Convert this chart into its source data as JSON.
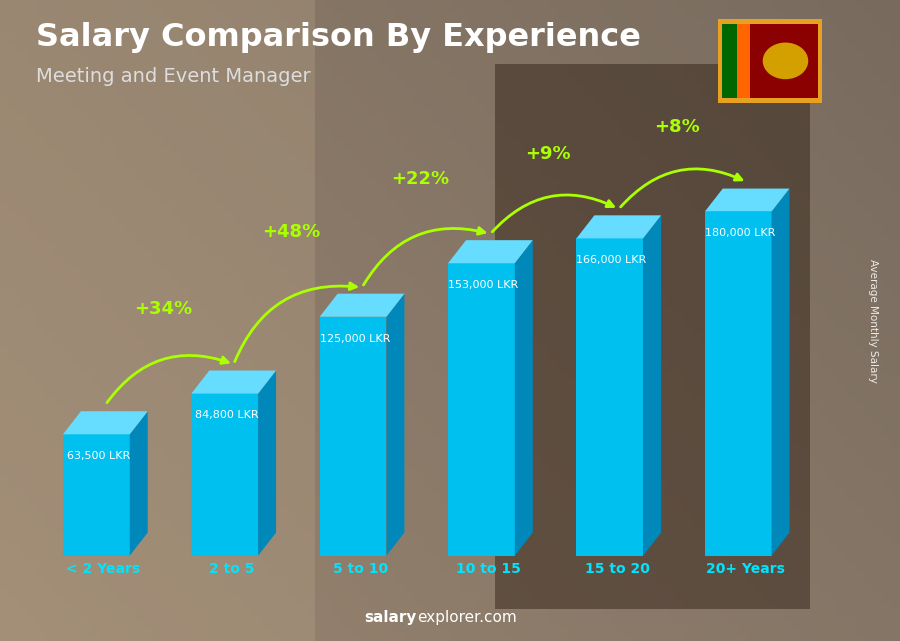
{
  "title": "Salary Comparison By Experience",
  "subtitle": "Meeting and Event Manager",
  "categories": [
    "< 2 Years",
    "2 to 5",
    "5 to 10",
    "10 to 15",
    "15 to 20",
    "20+ Years"
  ],
  "values": [
    63500,
    84800,
    125000,
    153000,
    166000,
    180000
  ],
  "bar_color_front": "#00C0F0",
  "bar_color_side": "#0088BB",
  "bar_color_top": "#66DDFF",
  "salary_labels": [
    "63,500 LKR",
    "84,800 LKR",
    "125,000 LKR",
    "153,000 LKR",
    "166,000 LKR",
    "180,000 LKR"
  ],
  "pct_changes": [
    "+34%",
    "+48%",
    "+22%",
    "+9%",
    "+8%"
  ],
  "ylabel_right": "Average Monthly Salary",
  "pct_color": "#aaff00",
  "cat_color": "#00e5ff",
  "title_color": "#ffffff",
  "subtitle_color": "#dddddd",
  "label_color": "#ffffff",
  "bg_color": "#8a7a6a"
}
